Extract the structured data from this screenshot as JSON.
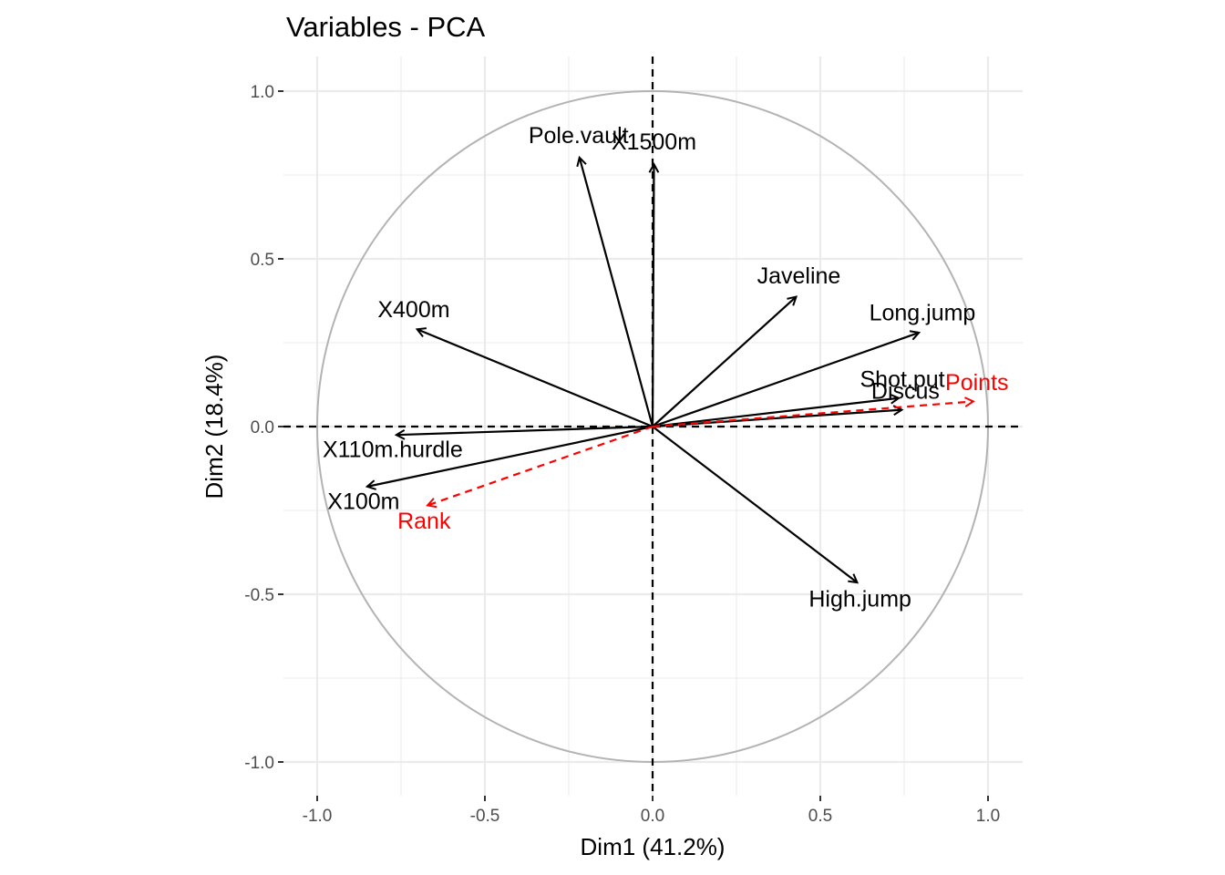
{
  "chart_data": {
    "type": "scatter",
    "title": "Variables - PCA",
    "xlabel": "Dim1 (41.2%)",
    "ylabel": "Dim2 (18.4%)",
    "xlim": [
      -1.1,
      1.1
    ],
    "ylim": [
      -1.1,
      1.1
    ],
    "xticks": [
      -1.0,
      -0.5,
      0.0,
      0.5,
      1.0
    ],
    "yticks": [
      -1.0,
      -0.5,
      0.0,
      0.5,
      1.0
    ],
    "xtick_labels": [
      "-1.0",
      "-0.5",
      "0.0",
      "0.5",
      "1.0"
    ],
    "ytick_labels": [
      "-1.0",
      "-0.5",
      "0.0",
      "0.5",
      "1.0"
    ],
    "grid": true,
    "correlation_circle": true,
    "colors": {
      "active": "#000000",
      "supplementary": "#ff0000",
      "circle": "#b3b3b3",
      "grid": "#ebebeb"
    },
    "series": [
      {
        "group": "active",
        "style": "solid",
        "color": "#000000",
        "points": [
          {
            "label": "X100m",
            "x": -0.851,
            "y": -0.179
          },
          {
            "label": "Long.jump",
            "x": 0.794,
            "y": 0.28
          },
          {
            "label": "Shot.put",
            "x": 0.734,
            "y": 0.085
          },
          {
            "label": "High.jump",
            "x": 0.61,
            "y": -0.465
          },
          {
            "label": "X400m",
            "x": -0.702,
            "y": 0.29
          },
          {
            "label": "X110m.hurdle",
            "x": -0.764,
            "y": -0.025
          },
          {
            "label": "Discus",
            "x": 0.743,
            "y": 0.05
          },
          {
            "label": "Pole.vault",
            "x": -0.218,
            "y": 0.802
          },
          {
            "label": "Javeline",
            "x": 0.428,
            "y": 0.387
          },
          {
            "label": "X1500m",
            "x": 0.004,
            "y": 0.782
          }
        ]
      },
      {
        "group": "supplementary",
        "style": "dashed",
        "color": "#ff0000",
        "points": [
          {
            "label": "Rank",
            "x": -0.671,
            "y": -0.235
          },
          {
            "label": "Points",
            "x": 0.956,
            "y": 0.075
          }
        ]
      }
    ]
  }
}
